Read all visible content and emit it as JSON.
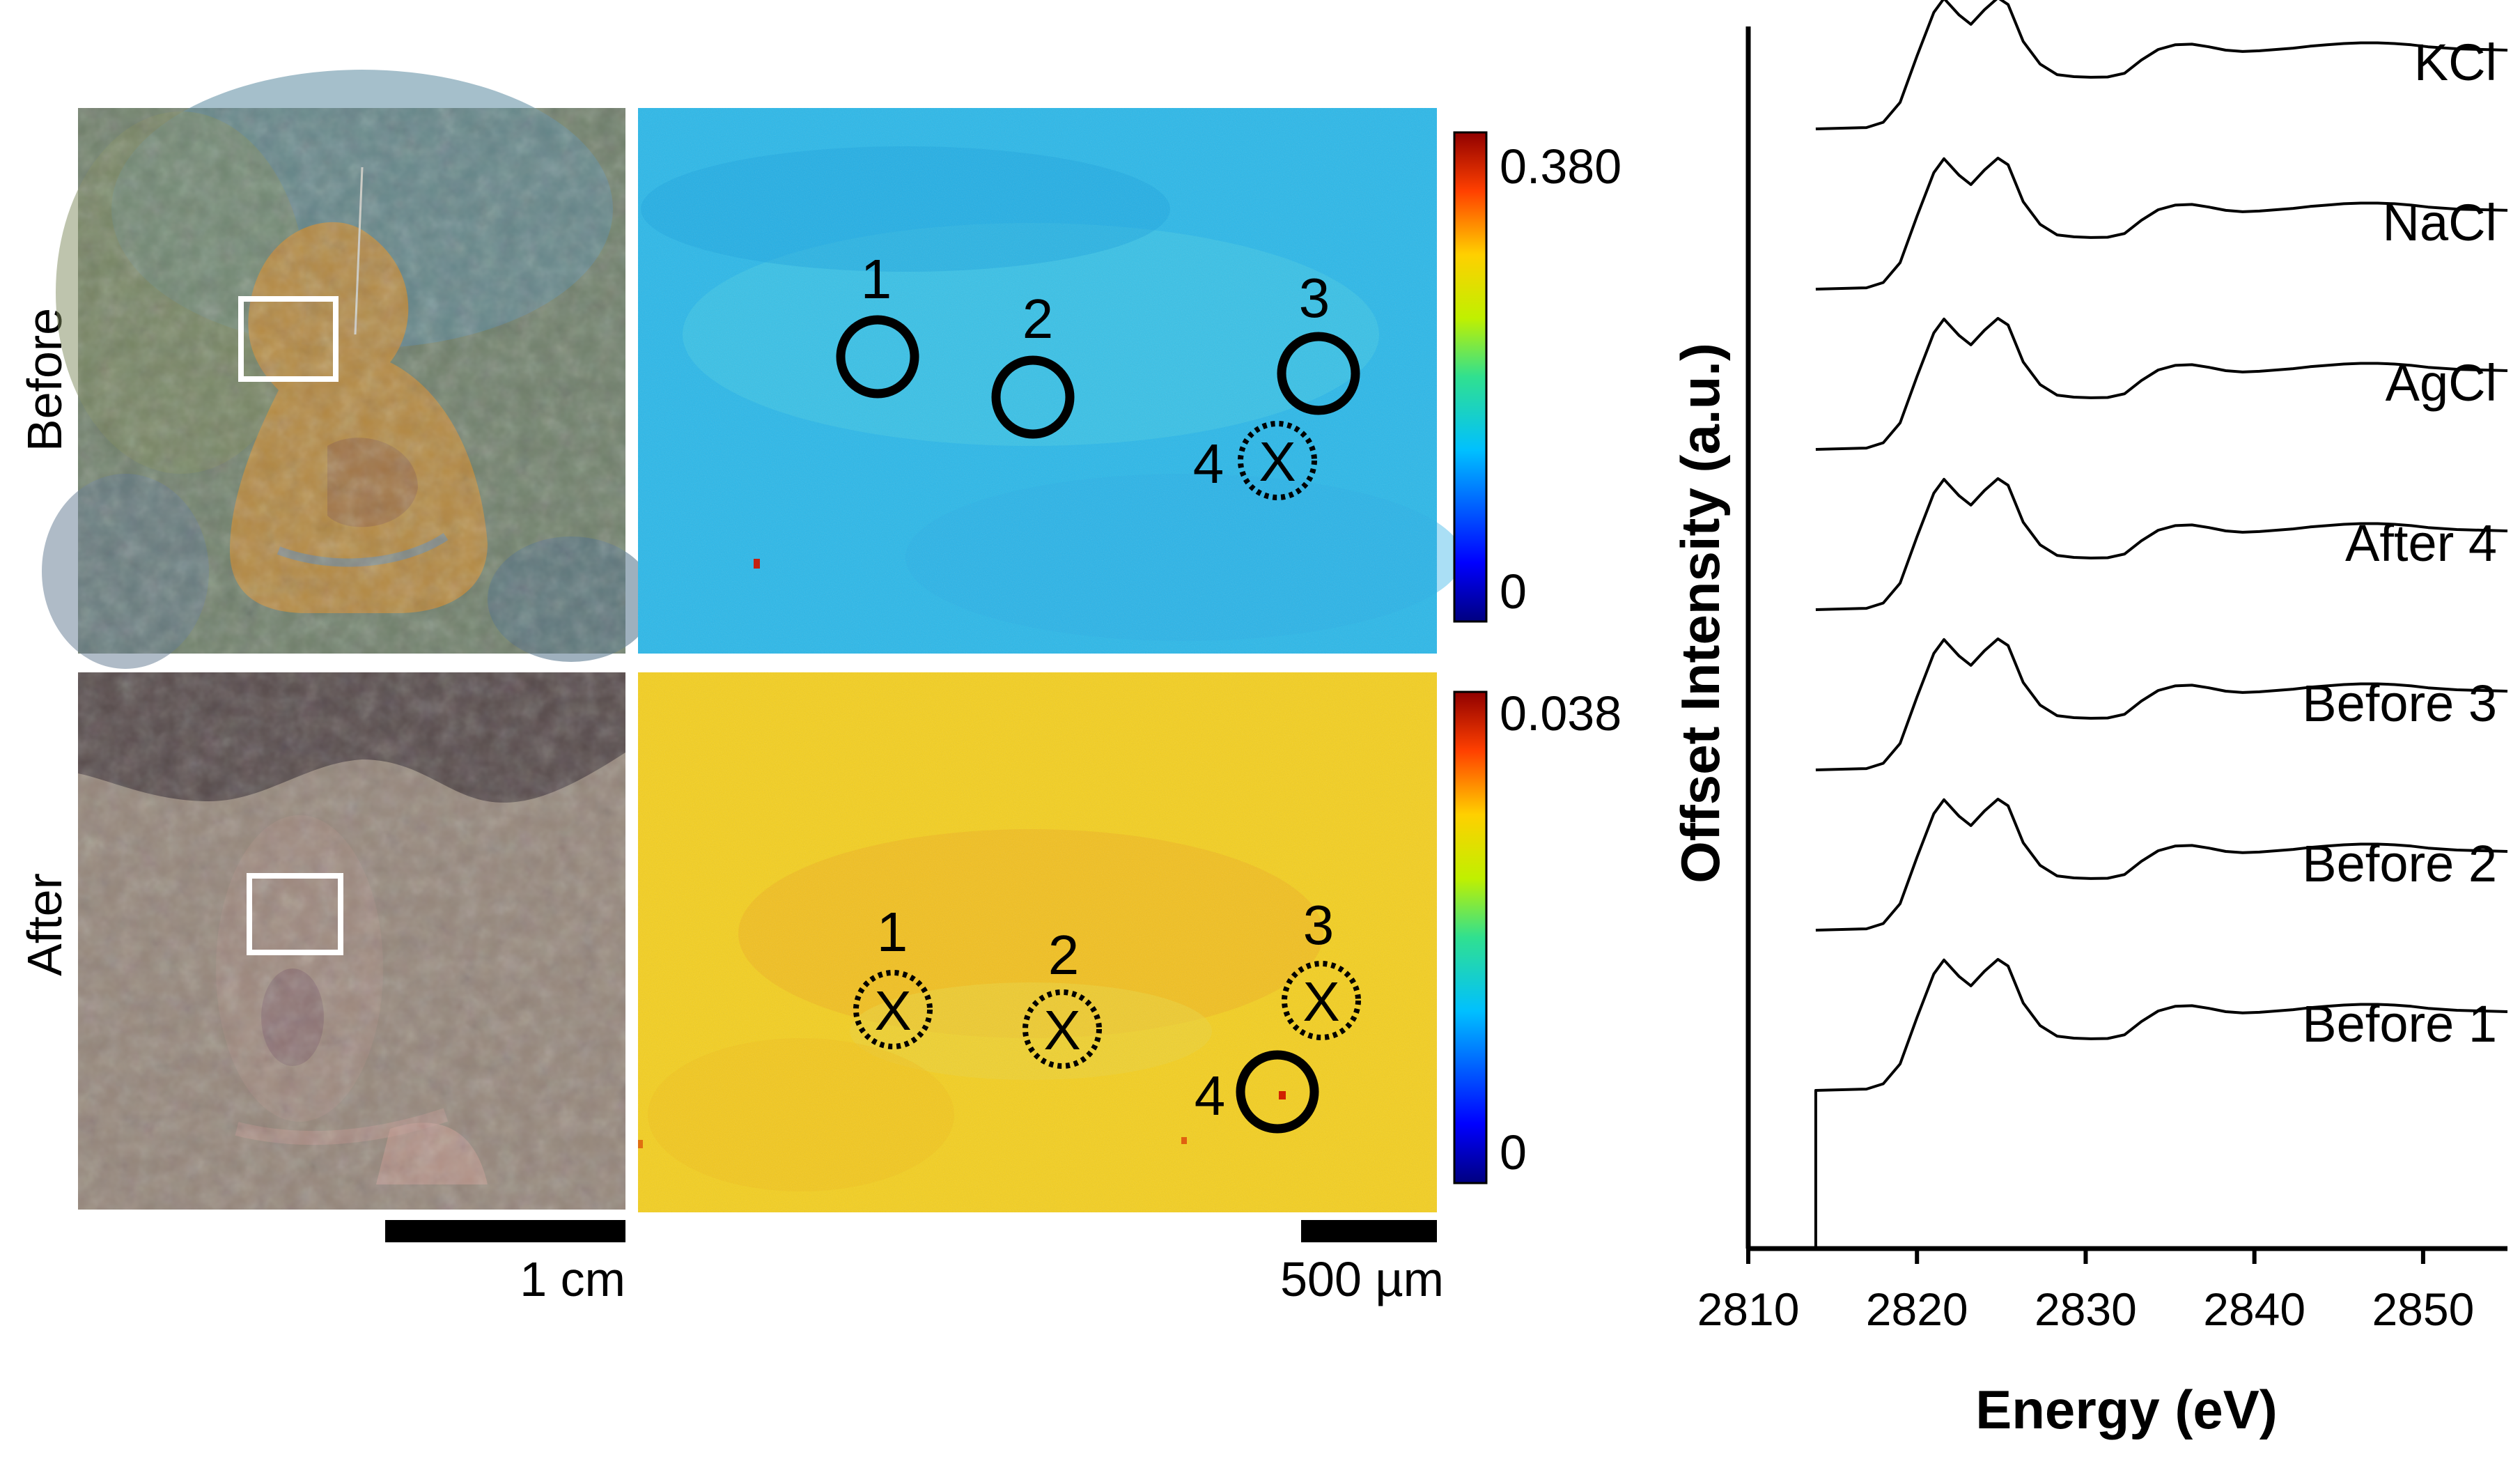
{
  "panels": {
    "row_labels": [
      "Before",
      "After"
    ],
    "maps": [
      {
        "row": "Before",
        "colorbar": {
          "max_label": "0.380",
          "min_label": "0"
        },
        "spots": [
          {
            "label": "1",
            "marker": "open-circle"
          },
          {
            "label": "2",
            "marker": "open-circle"
          },
          {
            "label": "3",
            "marker": "open-circle"
          },
          {
            "label": "4",
            "marker": "crossed-dashed-circle",
            "mark": "X"
          }
        ]
      },
      {
        "row": "After",
        "colorbar": {
          "max_label": "0.038",
          "min_label": "0"
        },
        "spots": [
          {
            "label": "1",
            "marker": "crossed-dashed-circle",
            "mark": "X"
          },
          {
            "label": "2",
            "marker": "crossed-dashed-circle",
            "mark": "X"
          },
          {
            "label": "3",
            "marker": "crossed-dashed-circle",
            "mark": "X"
          },
          {
            "label": "4",
            "marker": "open-circle"
          }
        ]
      }
    ],
    "scalebars": {
      "photo": "1 cm",
      "map": "500 µm"
    }
  },
  "colors": {
    "before_map": "#2bb8e9",
    "after_map": "#f4cf1f",
    "before_photo": "#6f7f6a",
    "after_photo": "#8f8278",
    "line": "#000000"
  },
  "chart_data": {
    "type": "line",
    "title": "",
    "xlabel": "Energy (eV)",
    "ylabel": "Offset Intensity (a.u.)",
    "xlim": [
      2810,
      2855
    ],
    "xticks": [
      2810,
      2820,
      2830,
      2840,
      2850
    ],
    "offset_step": 1.0,
    "series": [
      {
        "name": "Before 1",
        "offset": 0,
        "points": [
          [
            2814,
            0
          ],
          [
            2817,
            0.01
          ],
          [
            2818,
            0.05
          ],
          [
            2819,
            0.2
          ],
          [
            2820,
            0.55
          ],
          [
            2821,
            0.88
          ],
          [
            2821.6,
            0.985
          ],
          [
            2822.5,
            0.86
          ],
          [
            2823.2,
            0.79
          ],
          [
            2824,
            0.9
          ],
          [
            2824.8,
            0.99
          ],
          [
            2825.4,
            0.94
          ],
          [
            2826.3,
            0.66
          ],
          [
            2827.3,
            0.49
          ],
          [
            2828.3,
            0.41
          ],
          [
            2829.3,
            0.395
          ],
          [
            2830.3,
            0.39
          ],
          [
            2831.3,
            0.392
          ],
          [
            2832.3,
            0.42
          ],
          [
            2833.3,
            0.52
          ],
          [
            2834.3,
            0.6
          ],
          [
            2835.3,
            0.635
          ],
          [
            2836.3,
            0.64
          ],
          [
            2837.3,
            0.62
          ],
          [
            2838.3,
            0.595
          ],
          [
            2839.3,
            0.585
          ],
          [
            2840.3,
            0.59
          ],
          [
            2841.3,
            0.6
          ],
          [
            2842.3,
            0.61
          ],
          [
            2843.3,
            0.625
          ],
          [
            2844.3,
            0.635
          ],
          [
            2845.3,
            0.645
          ],
          [
            2846.3,
            0.65
          ],
          [
            2847.3,
            0.65
          ],
          [
            2848.3,
            0.645
          ],
          [
            2849.3,
            0.635
          ],
          [
            2850.3,
            0.62
          ],
          [
            2852,
            0.605
          ],
          [
            2855,
            0.595
          ]
        ]
      },
      {
        "name": "Before 2",
        "offset": 1,
        "points": [
          [
            2814,
            0
          ],
          [
            2817,
            0.01
          ],
          [
            2818,
            0.05
          ],
          [
            2819,
            0.2
          ],
          [
            2820,
            0.55
          ],
          [
            2821,
            0.88
          ],
          [
            2821.6,
            0.985
          ],
          [
            2822.5,
            0.86
          ],
          [
            2823.2,
            0.79
          ],
          [
            2824,
            0.9
          ],
          [
            2824.8,
            0.99
          ],
          [
            2825.4,
            0.94
          ],
          [
            2826.3,
            0.66
          ],
          [
            2827.3,
            0.49
          ],
          [
            2828.3,
            0.41
          ],
          [
            2829.3,
            0.395
          ],
          [
            2830.3,
            0.39
          ],
          [
            2831.3,
            0.392
          ],
          [
            2832.3,
            0.42
          ],
          [
            2833.3,
            0.52
          ],
          [
            2834.3,
            0.6
          ],
          [
            2835.3,
            0.635
          ],
          [
            2836.3,
            0.64
          ],
          [
            2837.3,
            0.62
          ],
          [
            2838.3,
            0.595
          ],
          [
            2839.3,
            0.585
          ],
          [
            2840.3,
            0.59
          ],
          [
            2841.3,
            0.6
          ],
          [
            2842.3,
            0.61
          ],
          [
            2843.3,
            0.625
          ],
          [
            2844.3,
            0.635
          ],
          [
            2845.3,
            0.645
          ],
          [
            2846.3,
            0.65
          ],
          [
            2847.3,
            0.65
          ],
          [
            2848.3,
            0.645
          ],
          [
            2849.3,
            0.635
          ],
          [
            2850.3,
            0.62
          ],
          [
            2852,
            0.605
          ],
          [
            2855,
            0.595
          ]
        ]
      },
      {
        "name": "Before 3",
        "offset": 2,
        "points": [
          [
            2814,
            0
          ],
          [
            2817,
            0.01
          ],
          [
            2818,
            0.05
          ],
          [
            2819,
            0.2
          ],
          [
            2820,
            0.55
          ],
          [
            2821,
            0.88
          ],
          [
            2821.6,
            0.985
          ],
          [
            2822.5,
            0.86
          ],
          [
            2823.2,
            0.79
          ],
          [
            2824,
            0.9
          ],
          [
            2824.8,
            0.99
          ],
          [
            2825.4,
            0.94
          ],
          [
            2826.3,
            0.66
          ],
          [
            2827.3,
            0.49
          ],
          [
            2828.3,
            0.41
          ],
          [
            2829.3,
            0.395
          ],
          [
            2830.3,
            0.39
          ],
          [
            2831.3,
            0.392
          ],
          [
            2832.3,
            0.42
          ],
          [
            2833.3,
            0.52
          ],
          [
            2834.3,
            0.6
          ],
          [
            2835.3,
            0.635
          ],
          [
            2836.3,
            0.64
          ],
          [
            2837.3,
            0.62
          ],
          [
            2838.3,
            0.595
          ],
          [
            2839.3,
            0.585
          ],
          [
            2840.3,
            0.59
          ],
          [
            2841.3,
            0.6
          ],
          [
            2842.3,
            0.61
          ],
          [
            2843.3,
            0.625
          ],
          [
            2844.3,
            0.635
          ],
          [
            2845.3,
            0.645
          ],
          [
            2846.3,
            0.65
          ],
          [
            2847.3,
            0.65
          ],
          [
            2848.3,
            0.645
          ],
          [
            2849.3,
            0.635
          ],
          [
            2850.3,
            0.62
          ],
          [
            2852,
            0.605
          ],
          [
            2855,
            0.595
          ]
        ]
      },
      {
        "name": "After 4",
        "offset": 3,
        "points": [
          [
            2814,
            0
          ],
          [
            2817,
            0.01
          ],
          [
            2818,
            0.05
          ],
          [
            2819,
            0.2
          ],
          [
            2820,
            0.55
          ],
          [
            2821,
            0.88
          ],
          [
            2821.6,
            0.985
          ],
          [
            2822.5,
            0.86
          ],
          [
            2823.2,
            0.79
          ],
          [
            2824,
            0.9
          ],
          [
            2824.8,
            0.99
          ],
          [
            2825.4,
            0.94
          ],
          [
            2826.3,
            0.66
          ],
          [
            2827.3,
            0.49
          ],
          [
            2828.3,
            0.41
          ],
          [
            2829.3,
            0.395
          ],
          [
            2830.3,
            0.39
          ],
          [
            2831.3,
            0.392
          ],
          [
            2832.3,
            0.42
          ],
          [
            2833.3,
            0.52
          ],
          [
            2834.3,
            0.6
          ],
          [
            2835.3,
            0.635
          ],
          [
            2836.3,
            0.64
          ],
          [
            2837.3,
            0.62
          ],
          [
            2838.3,
            0.595
          ],
          [
            2839.3,
            0.585
          ],
          [
            2840.3,
            0.59
          ],
          [
            2841.3,
            0.6
          ],
          [
            2842.3,
            0.61
          ],
          [
            2843.3,
            0.625
          ],
          [
            2844.3,
            0.635
          ],
          [
            2845.3,
            0.645
          ],
          [
            2846.3,
            0.65
          ],
          [
            2847.3,
            0.65
          ],
          [
            2848.3,
            0.645
          ],
          [
            2849.3,
            0.635
          ],
          [
            2850.3,
            0.62
          ],
          [
            2852,
            0.605
          ],
          [
            2855,
            0.595
          ]
        ]
      },
      {
        "name": "AgCl",
        "offset": 4,
        "points": [
          [
            2814,
            0
          ],
          [
            2817,
            0.01
          ],
          [
            2818,
            0.05
          ],
          [
            2819,
            0.2
          ],
          [
            2820,
            0.55
          ],
          [
            2821,
            0.88
          ],
          [
            2821.6,
            0.985
          ],
          [
            2822.5,
            0.86
          ],
          [
            2823.2,
            0.79
          ],
          [
            2824,
            0.9
          ],
          [
            2824.8,
            0.99
          ],
          [
            2825.4,
            0.94
          ],
          [
            2826.3,
            0.66
          ],
          [
            2827.3,
            0.49
          ],
          [
            2828.3,
            0.41
          ],
          [
            2829.3,
            0.395
          ],
          [
            2830.3,
            0.39
          ],
          [
            2831.3,
            0.392
          ],
          [
            2832.3,
            0.42
          ],
          [
            2833.3,
            0.52
          ],
          [
            2834.3,
            0.6
          ],
          [
            2835.3,
            0.635
          ],
          [
            2836.3,
            0.64
          ],
          [
            2837.3,
            0.62
          ],
          [
            2838.3,
            0.595
          ],
          [
            2839.3,
            0.585
          ],
          [
            2840.3,
            0.59
          ],
          [
            2841.3,
            0.6
          ],
          [
            2842.3,
            0.61
          ],
          [
            2843.3,
            0.625
          ],
          [
            2844.3,
            0.635
          ],
          [
            2845.3,
            0.645
          ],
          [
            2846.3,
            0.65
          ],
          [
            2847.3,
            0.65
          ],
          [
            2848.3,
            0.645
          ],
          [
            2849.3,
            0.635
          ],
          [
            2850.3,
            0.62
          ],
          [
            2852,
            0.605
          ],
          [
            2855,
            0.595
          ]
        ]
      },
      {
        "name": "NaCl",
        "offset": 5,
        "points": [
          [
            2814,
            0
          ],
          [
            2817,
            0.01
          ],
          [
            2818,
            0.05
          ],
          [
            2819,
            0.2
          ],
          [
            2820,
            0.55
          ],
          [
            2821,
            0.88
          ],
          [
            2821.6,
            0.985
          ],
          [
            2822.5,
            0.86
          ],
          [
            2823.2,
            0.79
          ],
          [
            2824,
            0.9
          ],
          [
            2824.8,
            0.99
          ],
          [
            2825.4,
            0.94
          ],
          [
            2826.3,
            0.66
          ],
          [
            2827.3,
            0.49
          ],
          [
            2828.3,
            0.41
          ],
          [
            2829.3,
            0.395
          ],
          [
            2830.3,
            0.39
          ],
          [
            2831.3,
            0.392
          ],
          [
            2832.3,
            0.42
          ],
          [
            2833.3,
            0.52
          ],
          [
            2834.3,
            0.6
          ],
          [
            2835.3,
            0.635
          ],
          [
            2836.3,
            0.64
          ],
          [
            2837.3,
            0.62
          ],
          [
            2838.3,
            0.595
          ],
          [
            2839.3,
            0.585
          ],
          [
            2840.3,
            0.59
          ],
          [
            2841.3,
            0.6
          ],
          [
            2842.3,
            0.61
          ],
          [
            2843.3,
            0.625
          ],
          [
            2844.3,
            0.635
          ],
          [
            2845.3,
            0.645
          ],
          [
            2846.3,
            0.65
          ],
          [
            2847.3,
            0.65
          ],
          [
            2848.3,
            0.645
          ],
          [
            2849.3,
            0.635
          ],
          [
            2850.3,
            0.62
          ],
          [
            2852,
            0.605
          ],
          [
            2855,
            0.595
          ]
        ]
      },
      {
        "name": "KCl",
        "offset": 6,
        "points": [
          [
            2814,
            0
          ],
          [
            2817,
            0.01
          ],
          [
            2818,
            0.05
          ],
          [
            2819,
            0.2
          ],
          [
            2820,
            0.55
          ],
          [
            2821,
            0.88
          ],
          [
            2821.6,
            0.985
          ],
          [
            2822.5,
            0.86
          ],
          [
            2823.2,
            0.79
          ],
          [
            2824,
            0.9
          ],
          [
            2824.8,
            0.99
          ],
          [
            2825.4,
            0.94
          ],
          [
            2826.3,
            0.66
          ],
          [
            2827.3,
            0.49
          ],
          [
            2828.3,
            0.41
          ],
          [
            2829.3,
            0.395
          ],
          [
            2830.3,
            0.39
          ],
          [
            2831.3,
            0.392
          ],
          [
            2832.3,
            0.42
          ],
          [
            2833.3,
            0.52
          ],
          [
            2834.3,
            0.6
          ],
          [
            2835.3,
            0.635
          ],
          [
            2836.3,
            0.64
          ],
          [
            2837.3,
            0.62
          ],
          [
            2838.3,
            0.595
          ],
          [
            2839.3,
            0.585
          ],
          [
            2840.3,
            0.59
          ],
          [
            2841.3,
            0.6
          ],
          [
            2842.3,
            0.61
          ],
          [
            2843.3,
            0.625
          ],
          [
            2844.3,
            0.635
          ],
          [
            2845.3,
            0.645
          ],
          [
            2846.3,
            0.65
          ],
          [
            2847.3,
            0.65
          ],
          [
            2848.3,
            0.645
          ],
          [
            2849.3,
            0.635
          ],
          [
            2850.3,
            0.62
          ],
          [
            2852,
            0.605
          ],
          [
            2855,
            0.595
          ]
        ]
      }
    ]
  }
}
